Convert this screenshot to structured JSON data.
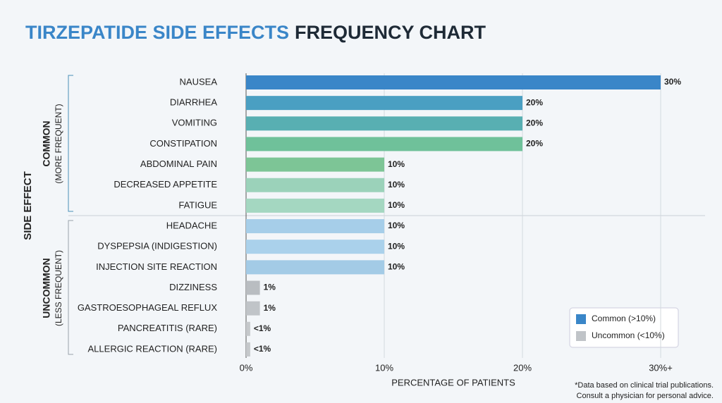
{
  "chart_data": {
    "type": "bar",
    "orientation": "horizontal",
    "title_part1": "TIRZEPATIDE SIDE EFFECTS",
    "title_part2": "FREQUENCY CHART",
    "y_label": "SIDE EFFECT",
    "x_label": "PERCENTAGE OF PATIENTS",
    "categories": [
      "NAUSEA",
      "DIARRHEA",
      "VOMITING",
      "CONSTIPATION",
      "ABDOMINAL PAIN",
      "DECREASED APPETITE",
      "FATIGUE",
      "HEADACHE",
      "DYSPEPSIA (INDIGESTION)",
      "INJECTION SITE REACTION",
      "DIZZINESS",
      "GASTROESOPHAGEAL REFLUX",
      "PANCREATITIS (RARE)",
      "ALLERGIC REACTION (RARE)"
    ],
    "values": [
      30,
      20,
      20,
      20,
      10,
      10,
      10,
      10,
      10,
      10,
      1,
      1,
      0.3,
      0.3
    ],
    "value_labels": [
      "30%",
      "20%",
      "20%",
      "20%",
      "10%",
      "10%",
      "10%",
      "10%",
      "10%",
      "10%",
      "1%",
      "1%",
      "<1%",
      "<1%"
    ],
    "colors": [
      "#3a86c8",
      "#4a9fc2",
      "#58afb2",
      "#6fc19a",
      "#7dc596",
      "#9bd2ba",
      "#a4d7c1",
      "#a6cee9",
      "#aad1eb",
      "#a3cbe6",
      "#b9bdc1",
      "#c0c4c8",
      "#c5c8cb",
      "#c5c8cb"
    ],
    "groups": [
      {
        "name": "COMMON",
        "note": "(MORE FREQUENT)"
      },
      {
        "name": "UNCOMMON",
        "note": "(LESS FREQUENT)"
      }
    ],
    "xlim": [
      0,
      30
    ],
    "xticks": [
      {
        "value": 0,
        "label": "0%"
      },
      {
        "value": 10,
        "label": "10%"
      },
      {
        "value": 20,
        "label": "20%"
      },
      {
        "value": 30,
        "label": "30%+"
      }
    ],
    "grid": true,
    "legend": [
      {
        "label": "Common (>10%)",
        "color": "#3a86c8"
      },
      {
        "label": "Uncommon (<10%)",
        "color": "#c0c4c8"
      }
    ],
    "note": [
      "*Data based on clinical trial publications.",
      "Consult a physician for personal advice."
    ]
  }
}
